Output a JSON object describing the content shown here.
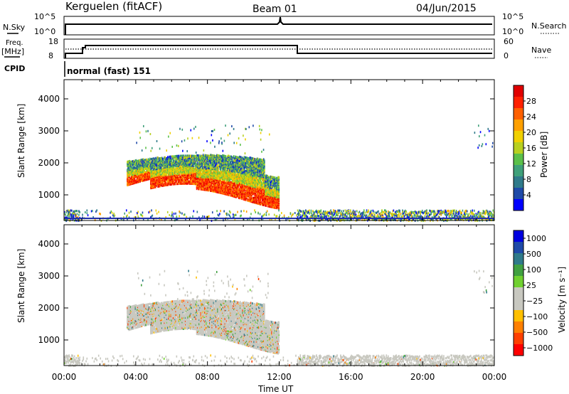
{
  "header": {
    "station": "Kerguelen (fitACF)",
    "beam": "Beam 01",
    "date": "04/Jun/2015"
  },
  "top_panel": {
    "nsky_label": "N.Sky",
    "nsky_ticks": [
      "10^5",
      "10^0"
    ],
    "nsearch_label": "N.Search",
    "nsearch_ticks": [
      "10^5",
      "10^0"
    ],
    "freq_label": "Freq.",
    "freq_unit": "[MHz]",
    "freq_ticks": [
      "18",
      "8"
    ],
    "nave_label": "Nave",
    "nave_ticks": [
      "60",
      "0"
    ],
    "cpid_label": "CPID",
    "cpid_value": "normal (fast) 151"
  },
  "colors": {
    "power_scale": [
      "#0000ff",
      "#1f4aa8",
      "#2f7a8a",
      "#3fa07a",
      "#5bc04a",
      "#b8d020",
      "#f0d000",
      "#ffa000",
      "#ff6000",
      "#ff2000",
      "#e00000"
    ],
    "velocity_scale": [
      "#ff0000",
      "#ff4000",
      "#ff8000",
      "#ffc000",
      "#c8c8c0",
      "#c8c8c0",
      "#70d030",
      "#40a040",
      "#2f7a8a",
      "#1f4aa8",
      "#0000e0"
    ],
    "ground_gray": "#c8c8c0"
  },
  "chart_data": [
    {
      "type": "heatmap",
      "title": "",
      "xlabel": "",
      "ylabel": "Slant Range [km]",
      "colorbar_label": "Power [dB]",
      "colorbar_ticks": [
        "28",
        "24",
        "20",
        "16",
        "12",
        "8",
        "4"
      ],
      "colorbar_range": [
        0,
        32
      ],
      "xlim": [
        0,
        24
      ],
      "ylim": [
        200,
        4600
      ],
      "yticks": [
        "1000",
        "2000",
        "3000",
        "4000"
      ],
      "xticks": [
        "00:00",
        "04:00",
        "08:00",
        "12:00",
        "16:00",
        "20:00",
        "00:00"
      ],
      "main_echo": {
        "time_range": [
          3.5,
          12.0
        ],
        "range_km": [
          800,
          2300
        ],
        "peak_power_db": 30,
        "peak_band_km": [
          900,
          1600
        ]
      },
      "near_range_noise": {
        "range_km": [
          200,
          550
        ],
        "time_range": [
          0,
          24
        ]
      }
    },
    {
      "type": "heatmap",
      "title": "",
      "xlabel": "Time UT",
      "ylabel": "Slant Range [km]",
      "colorbar_label": "Velocity [m s⁻¹]",
      "colorbar_ticks": [
        "1000",
        "500",
        "100",
        "25",
        "−25",
        "−100",
        "−500",
        "−1000"
      ],
      "colorbar_range": [
        -1000,
        1000
      ],
      "xlim": [
        0,
        24
      ],
      "ylim": [
        200,
        4600
      ],
      "yticks": [
        "1000",
        "2000",
        "3000",
        "4000"
      ],
      "xticks": [
        "00:00",
        "04:00",
        "08:00",
        "12:00",
        "16:00",
        "20:00",
        "00:00"
      ],
      "main_echo": {
        "time_range": [
          3.5,
          12.0
        ],
        "range_km": [
          800,
          2300
        ],
        "dominant_velocity_ms": 0
      }
    }
  ]
}
